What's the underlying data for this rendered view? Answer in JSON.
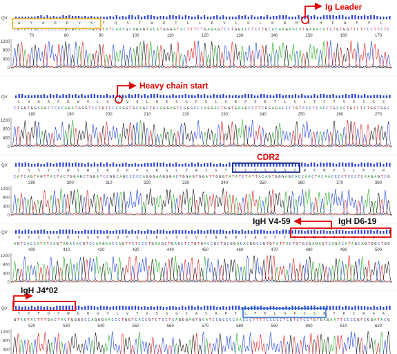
{
  "panels": [
    {
      "aa": "A Y A R R V S T Q S T W D T L L R V L D L K N M K H P W F F L",
      "nt": "CGTATCGCCTCCCTCGCGCATCAGTGTATCAACGCAGAGTACATGGGATACTTTCTGAGAGTCCTGGACCTCCTGCACAAGAACATGAAACATCTGTGGTTCTTCCTTCTC",
      "start": 70,
      "end": 170,
      "annotations": [
        {
          "text": "Ig Leader"
        }
      ]
    },
    {
      "aa": "L V A A P R W V L S Q V Q L Q E S G P G L V K P S E T L S L T C T V S G G S",
      "nt": "CTGGTGGCAGCTCCCAGATGGGTCCTGTCCCAGGTGCAGCTGCAGGAGTCGGGCCCAGGACTGGTGAAGCCTTCGGAGACCCTGTCCCTCACCTGCACTGTCTCTGGTGGC",
      "start": 180,
      "end": 270,
      "annotations": [
        {
          "text": "Heavy chain start"
        }
      ]
    },
    {
      "aa": "I S S Y Y W S W I R Q P P G K G L E W I G Y I Y Y S G S T N Y N P S L K S R",
      "nt": "CATCAGTAGTTACTACTGGAGCTGGATCCGGCAGCCCCCAGGGAAGGGACTGGAGTGGATTGGGTATATCTATTACAGTGGGAGCACCAACTACAACCCCTCCCTCAAGAGTCG",
      "start": 290,
      "end": 380,
      "annotations": [
        {
          "text": "CDR2"
        }
      ]
    },
    {
      "aa": "V T I S V D T S K N Q F S L K L S S V T A A D T A V Y Y C A R V R H S S G W",
      "nt": "AGTCACCATATCAGTAGACACGTCCAAGAACCAGTTCTCCCTGAAGCTGAGCTCTGTGACCGCTGCGGACACGGCCGTGTATTACTGTGCGAGAGTCAGACATAGCAGTGGCTGG",
      "start": 400,
      "end": 500,
      "annotations": [
        {
          "text": "IgH V4-59"
        },
        {
          "text": "IgH D6-19"
        }
      ]
    },
    {
      "aa": "Y Y F D Y W G Q G T L V T V S S G S A S A P T L F P L S P C S R T R I R G A",
      "nt": "GTACTACTTTGACTACTGGGGCCAGGGAACCCTGGTCACCGTCTCCTCAGGGAGTGCATCCGCCCCAACCCTTTTCCCCCTCGTCTCCTGTGAGAATTCCCCGTCGGATACG",
      "start": 520,
      "end": 620,
      "annotations": [
        {
          "text": "IgH J4*02"
        }
      ]
    }
  ],
  "y_axis_ticks": [
    "0",
    "400",
    "800",
    "1200"
  ],
  "y_axis_label": "QV",
  "colors": {
    "A": "#22aa22",
    "C": "#1a3fd6",
    "G": "#111111",
    "T": "#e01818",
    "qv": "#2b45d8",
    "highlight_red": "#e00000",
    "box_orange": "#f0b020",
    "box_navy": "#1c2a8a",
    "box_blue": "#2a6fcf"
  }
}
